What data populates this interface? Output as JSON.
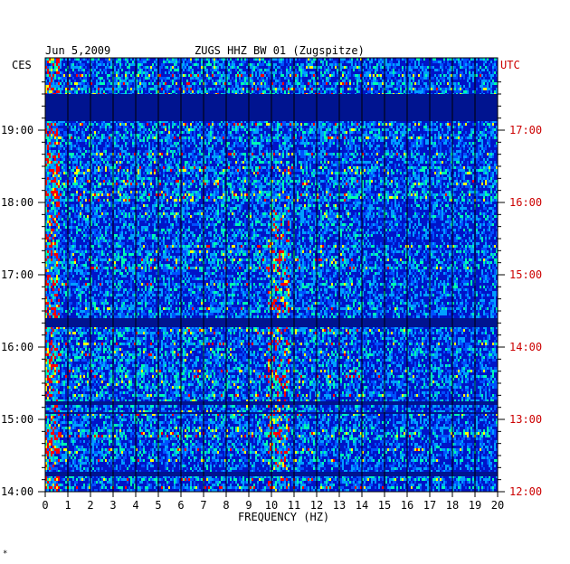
{
  "header": {
    "date": "Jun 5,2009",
    "station": "ZUGS HHZ BW 01 (Zugspitze)",
    "left_zone": "CES",
    "right_zone": "UTC"
  },
  "footer_mark": "*",
  "chart_data": {
    "type": "heatmap",
    "title": "ZUGS HHZ BW 01 (Zugspitze)",
    "xlabel": "FREQUENCY (HZ)",
    "ylabel": "",
    "xlim": [
      0,
      20
    ],
    "ylim_local": [
      "14:00",
      "19:40"
    ],
    "x_ticks": [
      "0",
      "1",
      "2",
      "3",
      "4",
      "5",
      "6",
      "7",
      "8",
      "9",
      "10",
      "11",
      "12",
      "13",
      "14",
      "15",
      "16",
      "17",
      "18",
      "19",
      "20"
    ],
    "y_ticks_left": [
      "19:00",
      "18:00",
      "17:00",
      "16:00",
      "15:00",
      "14:00"
    ],
    "y_ticks_right": [
      "17:00",
      "16:00",
      "15:00",
      "14:00",
      "13:00",
      "12:00"
    ],
    "y_tick_hours": [
      19,
      18,
      17,
      16,
      15,
      14
    ],
    "colors": {
      "background": "#0014c8",
      "low": "#0000a0",
      "mid": "#00a0ff",
      "high": "#ffff00",
      "peak": "#ff0000",
      "grid": "#000000",
      "utc_label": "#cc0000"
    }
  }
}
